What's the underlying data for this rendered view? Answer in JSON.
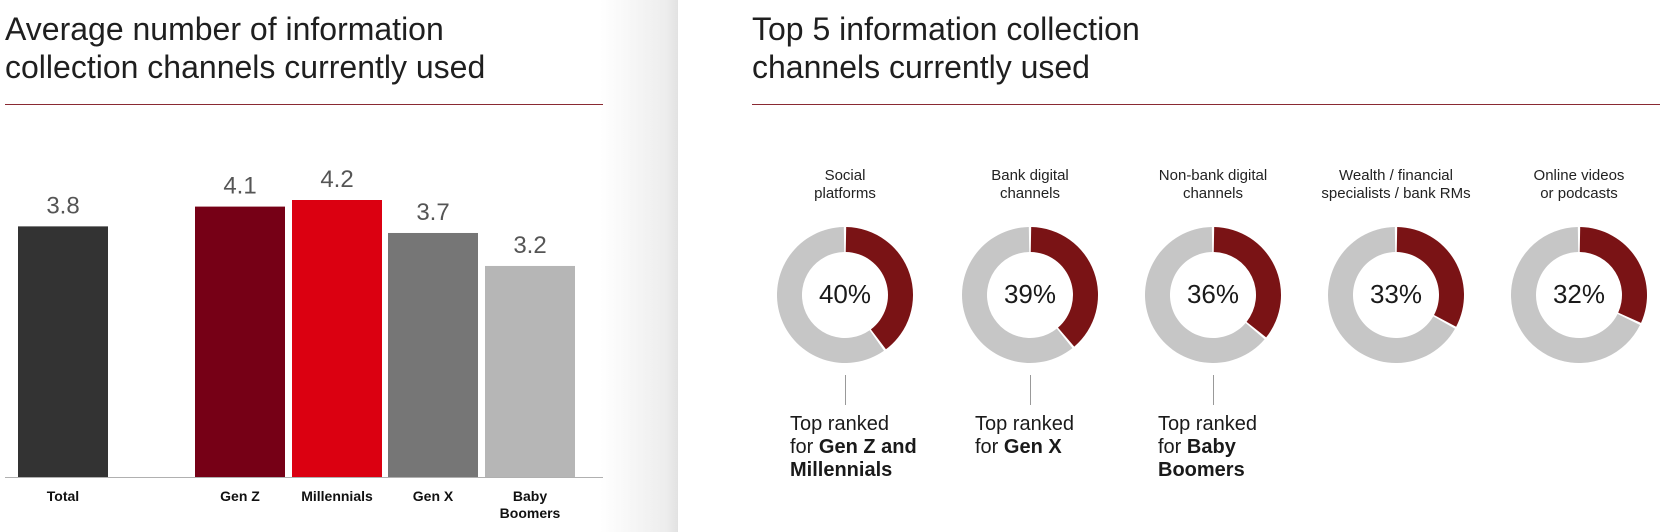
{
  "chart_data": [
    {
      "type": "bar",
      "title": "Average number of information\ncollection channels currently used",
      "categories": [
        "Total",
        "Gen Z",
        "Millennials",
        "Gen X",
        "Baby\nBoomers"
      ],
      "values": [
        3.8,
        4.1,
        4.2,
        3.7,
        3.2
      ],
      "value_labels": [
        "3.8",
        "4.1",
        "4.2",
        "3.7",
        "3.2"
      ],
      "colors": [
        "#333333",
        "#760016",
        "#db0011",
        "#767676",
        "#b6b6b6"
      ],
      "ylim": [
        0,
        4.2
      ],
      "grid": false
    },
    {
      "type": "pie",
      "subtype": "donut",
      "title": "Top 5 information collection\nchannels currently used",
      "categories": [
        "Social\nplatforms",
        "Bank digital\nchannels",
        "Non-bank digital\nchannels",
        "Wealth / financial\nspecialists / bank RMs",
        "Online videos\nor podcasts"
      ],
      "values": [
        40,
        39,
        36,
        33,
        32
      ],
      "value_labels": [
        "40%",
        "39%",
        "36%",
        "33%",
        "32%"
      ],
      "colors": {
        "highlight": "#7a1315",
        "remainder": "#c6c6c6"
      },
      "annotations": [
        {
          "donut": 0,
          "lead": "Top ranked\nfor ",
          "emphasis": "Gen Z and Millennials"
        },
        {
          "donut": 1,
          "lead": "Top ranked\nfor ",
          "emphasis": "Gen X"
        },
        {
          "donut": 2,
          "lead": "Top ranked\nfor ",
          "emphasis": "Baby Boomers"
        }
      ]
    }
  ]
}
